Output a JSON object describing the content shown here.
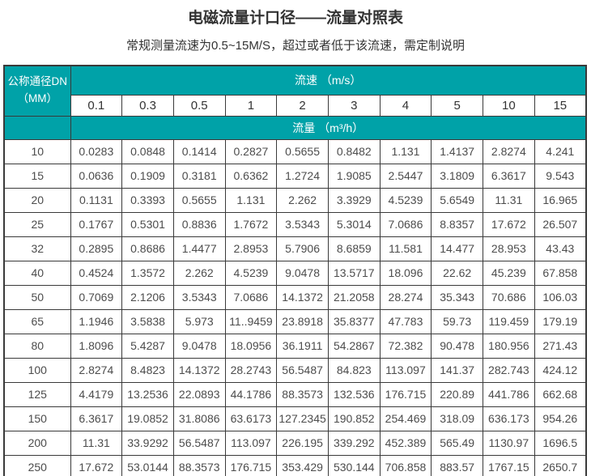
{
  "colors": {
    "accent_teal": "#00a2a8",
    "border": "#3a3a3a",
    "header_text": "#ffffff",
    "number_text": "#4c4c4c",
    "title_text": "#333333"
  },
  "chart_data": {
    "type": "table",
    "title": "电磁流量计口径——流量对照表",
    "subtitle": "常规测量流速为0.5~15M/S，超过或者低于该流速，需定制说明",
    "corner_header": {
      "line1": "公称通径DN",
      "line2": "（MM）"
    },
    "velocity_header": "流速 （m/s）",
    "flow_header": "流量 （m³/h）",
    "velocity_columns": [
      "0.1",
      "0.3",
      "0.5",
      "1",
      "2",
      "3",
      "4",
      "5",
      "10",
      "15"
    ],
    "rows": [
      {
        "dn": "10",
        "values": [
          "0.0283",
          "0.0848",
          "0.1414",
          "0.2827",
          "0.5655",
          "0.8482",
          "1.131",
          "1.4137",
          "2.8274",
          "4.241"
        ]
      },
      {
        "dn": "15",
        "values": [
          "0.0636",
          "0.1909",
          "0.3181",
          "0.6362",
          "1.2724",
          "1.9085",
          "2.5447",
          "3.1809",
          "6.3617",
          "9.543"
        ]
      },
      {
        "dn": "20",
        "values": [
          "0.1131",
          "0.3393",
          "0.5655",
          "1.131",
          "2.262",
          "3.3929",
          "4.5239",
          "5.6549",
          "11.31",
          "16.965"
        ]
      },
      {
        "dn": "25",
        "values": [
          "0.1767",
          "0.5301",
          "0.8836",
          "1.7672",
          "3.5343",
          "5.3014",
          "7.0686",
          "8.8357",
          "17.672",
          "26.507"
        ]
      },
      {
        "dn": "32",
        "values": [
          "0.2895",
          "0.8686",
          "1.4477",
          "2.8953",
          "5.7906",
          "8.6859",
          "11.581",
          "14.477",
          "28.953",
          "43.43"
        ]
      },
      {
        "dn": "40",
        "values": [
          "0.4524",
          "1.3572",
          "2.262",
          "4.5239",
          "9.0478",
          "13.5717",
          "18.096",
          "22.62",
          "45.239",
          "67.858"
        ]
      },
      {
        "dn": "50",
        "values": [
          "0.7069",
          "2.1206",
          "3.5343",
          "7.0686",
          "14.1372",
          "21.2058",
          "28.274",
          "35.343",
          "70.686",
          "106.03"
        ]
      },
      {
        "dn": "65",
        "values": [
          "1.1946",
          "3.5838",
          "5.973",
          "11..9459",
          "23.8918",
          "35.8377",
          "47.783",
          "59.73",
          "119.459",
          "179.19"
        ]
      },
      {
        "dn": "80",
        "values": [
          "1.8096",
          "5.4287",
          "9.0478",
          "18.0956",
          "36.1911",
          "54.2867",
          "72.382",
          "90.478",
          "180.956",
          "271.43"
        ]
      },
      {
        "dn": "100",
        "values": [
          "2.8274",
          "8.4823",
          "14.1372",
          "28.2743",
          "56.5487",
          "84.823",
          "113.097",
          "141.37",
          "282.743",
          "424.12"
        ]
      },
      {
        "dn": "125",
        "values": [
          "4.4179",
          "13.2536",
          "22.0893",
          "44.1786",
          "88.3573",
          "132.536",
          "176.715",
          "220.89",
          "441.786",
          "662.68"
        ]
      },
      {
        "dn": "150",
        "values": [
          "6.3617",
          "19.0852",
          "31.8086",
          "63.6173",
          "127.2345",
          "190.852",
          "254.469",
          "318.09",
          "636.173",
          "954.26"
        ]
      },
      {
        "dn": "200",
        "values": [
          "11.31",
          "33.9292",
          "56.5487",
          "113.097",
          "226.195",
          "339.292",
          "452.389",
          "565.49",
          "1130.97",
          "1696.5"
        ]
      },
      {
        "dn": "250",
        "values": [
          "17.672",
          "53.0144",
          "88.3573",
          "176.715",
          "353.429",
          "530.144",
          "706.858",
          "883.57",
          "1767.15",
          "2650.7"
        ]
      }
    ]
  }
}
